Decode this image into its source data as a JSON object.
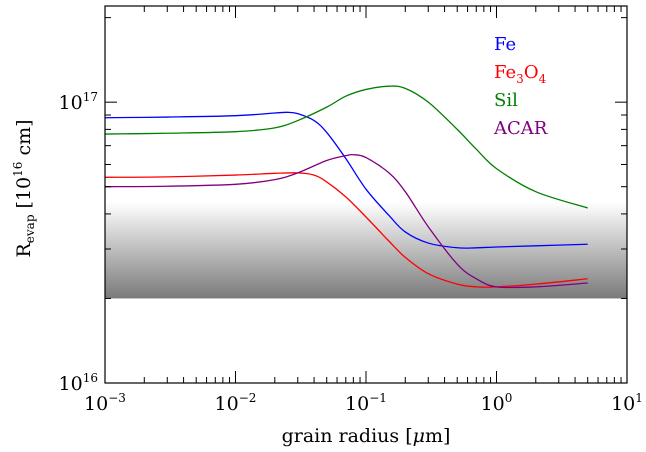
{
  "chart_data": {
    "type": "line",
    "title": "",
    "xlabel_prefix": "grain radius [",
    "xlabel_unit_symbol": "μ",
    "xlabel_suffix": "m]",
    "ylabel_main": "R",
    "ylabel_sub": "evap",
    "ylabel_mid": " [10",
    "ylabel_exp": "16",
    "ylabel_end": " cm]",
    "x_scale": "log",
    "y_scale": "log",
    "xlim": [
      0.001,
      10
    ],
    "ylim": [
      1e+16,
      2.2e+17
    ],
    "grid": false,
    "legend_placement": "top-right",
    "x_ticks": [
      {
        "value": 0.001,
        "base": "10",
        "exp": "−3"
      },
      {
        "value": 0.01,
        "base": "10",
        "exp": "−2"
      },
      {
        "value": 0.1,
        "base": "10",
        "exp": "−1"
      },
      {
        "value": 1,
        "base": "10",
        "exp": "0"
      },
      {
        "value": 10,
        "base": "10",
        "exp": "1"
      }
    ],
    "y_ticks": [
      {
        "value": 1e+16,
        "base": "10",
        "exp": "16"
      },
      {
        "value": 1e+17,
        "base": "10",
        "exp": "17"
      }
    ],
    "shaded_band": {
      "y_low": 2e+16,
      "y_high": 4.4e+16,
      "color_top": "#ffffff",
      "color_bottom": "#7a7a7a"
    },
    "series": [
      {
        "name": "Fe",
        "legend_main": "Fe",
        "legend_sub1": "",
        "legend_mid": "",
        "legend_sub2": "",
        "color": "#0000ff",
        "x": [
          0.001,
          0.003,
          0.01,
          0.02,
          0.025,
          0.03,
          0.04,
          0.05,
          0.07,
          0.1,
          0.15,
          0.2,
          0.3,
          0.5,
          0.7,
          1,
          2,
          5
        ],
        "y": [
          8.8e+16,
          8.85e+16,
          8.95e+16,
          9.15e+16,
          9.2e+16,
          9.1e+16,
          8.6e+16,
          7.8e+16,
          6.3e+16,
          4.9e+16,
          3.95e+16,
          3.45e+16,
          3.15e+16,
          3.03e+16,
          3.03e+16,
          3.05e+16,
          3.08e+16,
          3.12e+16
        ]
      },
      {
        "name": "Fe3O4",
        "legend_main": "Fe",
        "legend_sub1": "3",
        "legend_mid": "O",
        "legend_sub2": "4",
        "color": "#ff0000",
        "x": [
          0.001,
          0.003,
          0.01,
          0.02,
          0.03,
          0.04,
          0.05,
          0.07,
          0.1,
          0.15,
          0.2,
          0.3,
          0.5,
          0.7,
          1,
          2,
          5
        ],
        "y": [
          5.4e+16,
          5.42e+16,
          5.5e+16,
          5.58e+16,
          5.6e+16,
          5.5e+16,
          5.2e+16,
          4.6e+16,
          3.9e+16,
          3.2e+16,
          2.8e+16,
          2.45e+16,
          2.25e+16,
          2.2e+16,
          2.2e+16,
          2.25e+16,
          2.35e+16
        ]
      },
      {
        "name": "Sil",
        "legend_main": "Sil",
        "legend_sub1": "",
        "legend_mid": "",
        "legend_sub2": "",
        "color": "#008000",
        "x": [
          0.001,
          0.003,
          0.01,
          0.02,
          0.03,
          0.05,
          0.07,
          0.1,
          0.15,
          0.2,
          0.3,
          0.5,
          0.7,
          1,
          2,
          5
        ],
        "y": [
          7.7e+16,
          7.75e+16,
          7.85e+16,
          8.1e+16,
          8.6e+16,
          9.6e+16,
          1.05e+17,
          1.11e+17,
          1.14e+17,
          1.12e+17,
          1e+17,
          8e+16,
          6.8e+16,
          5.8e+16,
          4.8e+16,
          4.2e+16
        ]
      },
      {
        "name": "ACAR",
        "legend_main": "ACAR",
        "legend_sub1": "",
        "legend_mid": "",
        "legend_sub2": "",
        "color": "#800080",
        "x": [
          0.001,
          0.003,
          0.01,
          0.02,
          0.03,
          0.05,
          0.07,
          0.08,
          0.1,
          0.15,
          0.2,
          0.3,
          0.5,
          0.7,
          1,
          2,
          5
        ],
        "y": [
          5e+16,
          5.02e+16,
          5.1e+16,
          5.3e+16,
          5.6e+16,
          6.2e+16,
          6.45e+16,
          6.5e+16,
          6.35e+16,
          5.6e+16,
          4.8e+16,
          3.6e+16,
          2.65e+16,
          2.35e+16,
          2.2e+16,
          2.2e+16,
          2.27e+16
        ]
      }
    ]
  }
}
